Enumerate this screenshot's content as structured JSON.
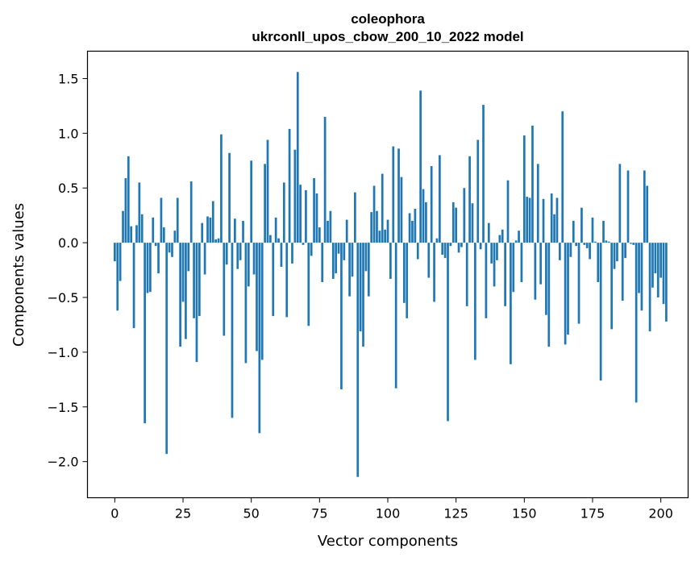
{
  "chart_data": {
    "type": "bar",
    "title": "coleophora",
    "subtitle": "ukrconll_upos_cbow_200_10_2022 model",
    "xlabel": "Vector components",
    "ylabel": "Components values",
    "xlim": [
      -10,
      210
    ],
    "ylim": [
      -2.33,
      1.75
    ],
    "xticks": [
      0,
      25,
      50,
      75,
      100,
      125,
      150,
      175,
      200
    ],
    "yticks": [
      -2.0,
      -1.5,
      -1.0,
      -0.5,
      0.0,
      0.5,
      1.0,
      1.5
    ],
    "ytick_labels": [
      "−2.0",
      "−1.5",
      "−1.0",
      "−0.5",
      "0.0",
      "0.5",
      "1.0",
      "1.5"
    ],
    "bar_color": "#1f77b4",
    "grid": false,
    "values": [
      -0.17,
      -0.62,
      -0.35,
      0.29,
      0.59,
      0.79,
      0.15,
      -0.78,
      0.16,
      0.55,
      0.26,
      -1.65,
      -0.46,
      -0.45,
      0.23,
      -0.03,
      -0.28,
      0.41,
      0.14,
      -1.93,
      -0.09,
      -0.13,
      0.11,
      0.41,
      -0.95,
      -0.54,
      -0.88,
      -0.26,
      0.56,
      -0.69,
      -1.09,
      -0.67,
      0.18,
      -0.29,
      0.24,
      0.23,
      0.38,
      0.03,
      0.04,
      0.99,
      -0.85,
      -0.2,
      0.82,
      -1.6,
      0.22,
      -0.24,
      -0.16,
      0.2,
      -1.1,
      -0.4,
      0.75,
      -0.29,
      -0.99,
      -1.74,
      -1.07,
      0.72,
      0.94,
      0.07,
      -0.67,
      0.23,
      0.04,
      -0.22,
      0.55,
      -0.68,
      1.04,
      -0.19,
      0.85,
      1.56,
      0.53,
      -0.02,
      0.48,
      -0.76,
      -0.12,
      0.59,
      0.45,
      0.14,
      -0.36,
      1.15,
      0.2,
      0.29,
      -0.33,
      -0.28,
      -0.1,
      -1.34,
      -0.16,
      0.21,
      -0.49,
      -0.31,
      0.46,
      -2.14,
      -0.81,
      -0.95,
      -0.26,
      -0.49,
      0.28,
      0.52,
      0.29,
      0.11,
      0.63,
      0.12,
      0.21,
      -0.33,
      0.88,
      -1.33,
      0.86,
      0.6,
      -0.55,
      -0.69,
      0.27,
      0.2,
      0.31,
      -0.15,
      1.39,
      0.49,
      0.37,
      -0.32,
      0.7,
      -0.54,
      0.04,
      0.8,
      -0.11,
      -0.14,
      -1.63,
      -0.03,
      0.37,
      0.32,
      -0.09,
      -0.04,
      0.5,
      -0.58,
      0.79,
      0.36,
      -1.07,
      0.94,
      -0.06,
      1.26,
      -0.69,
      0.18,
      -0.19,
      -0.4,
      -0.16,
      0.07,
      0.12,
      -0.58,
      0.57,
      -1.11,
      -0.45,
      0.02,
      0.11,
      -0.36,
      0.98,
      0.42,
      0.41,
      1.07,
      -0.52,
      0.72,
      -0.38,
      0.4,
      -0.66,
      -0.95,
      0.45,
      0.26,
      0.41,
      -0.16,
      1.2,
      -0.93,
      -0.84,
      -0.13,
      0.2,
      -0.03,
      -0.74,
      0.32,
      -0.02,
      -0.05,
      -0.15,
      0.23,
      0.01,
      -0.36,
      -1.26,
      0.2,
      0.02,
      0.01,
      -0.79,
      -0.24,
      -0.17,
      0.72,
      -0.53,
      -0.14,
      0.66,
      -0.01,
      -0.02,
      -1.46,
      -0.46,
      -0.62,
      0.66,
      0.52,
      -0.81,
      -0.41,
      -0.28,
      -0.5,
      -0.32,
      -0.56,
      -0.72
    ]
  }
}
